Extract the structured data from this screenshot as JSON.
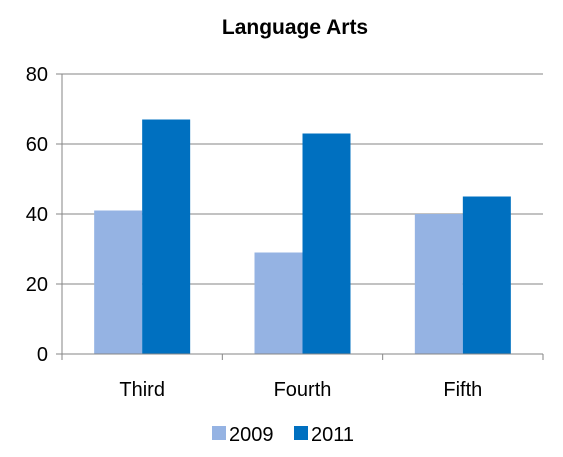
{
  "chart_data": {
    "type": "bar",
    "title": "Language Arts",
    "categories": [
      "Third",
      "Fourth",
      "Fifth"
    ],
    "series": [
      {
        "name": "2009",
        "values": [
          41,
          29,
          40
        ],
        "color": "#95B3E3"
      },
      {
        "name": "2011",
        "values": [
          67,
          63,
          45
        ],
        "color": "#0070C0"
      }
    ],
    "ylim": [
      0,
      80
    ],
    "yticks": [
      0,
      20,
      40,
      60,
      80
    ],
    "grid": true,
    "gridline_color": "#868686",
    "legend_position": "bottom"
  }
}
